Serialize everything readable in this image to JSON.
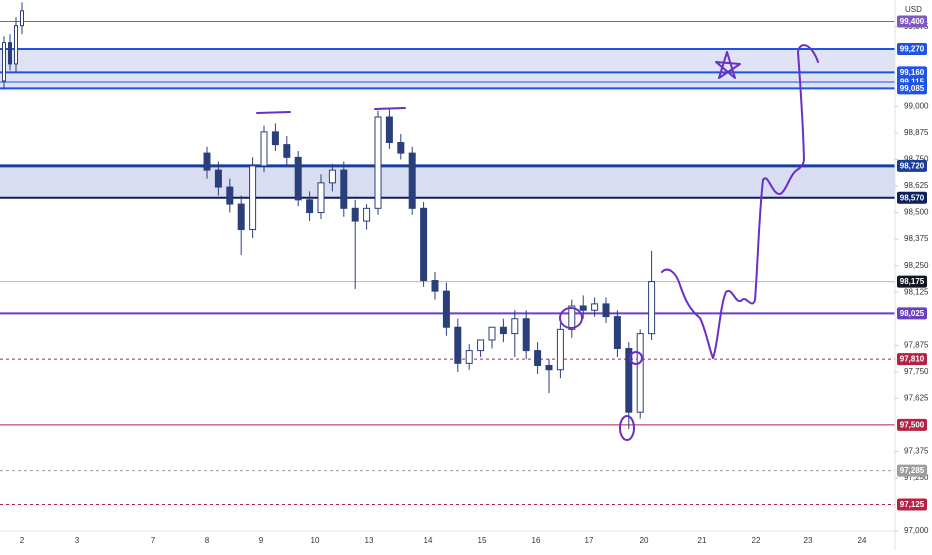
{
  "chart_data": {
    "type": "candlestick",
    "currency": "USD",
    "ylim": [
      96911,
      99501
    ],
    "yticks": [
      {
        "value": 97000,
        "label": "97,000"
      },
      {
        "value": 97250,
        "label": "97,250"
      },
      {
        "value": 97375,
        "label": "97,375"
      },
      {
        "value": 97625,
        "label": "97,625"
      },
      {
        "value": 97750,
        "label": "97,750"
      },
      {
        "value": 97875,
        "label": "97,875"
      },
      {
        "value": 98125,
        "label": "98,125"
      },
      {
        "value": 98250,
        "label": "98,250"
      },
      {
        "value": 98375,
        "label": "98,375"
      },
      {
        "value": 98500,
        "label": "98,500"
      },
      {
        "value": 98625,
        "label": "98,625"
      },
      {
        "value": 98750,
        "label": "98,750"
      },
      {
        "value": 98875,
        "label": "98,875"
      },
      {
        "value": 99000,
        "label": "99,000"
      },
      {
        "value": 99375,
        "label": "99,375"
      }
    ],
    "categories": [
      "2",
      "3",
      "7",
      "8",
      "9",
      "10",
      "13",
      "14",
      "15",
      "16",
      "17",
      "20",
      "21",
      "22",
      "23",
      "24"
    ],
    "candle_color": "#2b3f7a",
    "open": [
      99120,
      99300,
      99200,
      99380,
      98780,
      98700,
      98620,
      98540,
      98420,
      98720,
      98880,
      98820,
      98760,
      98560,
      98500,
      98640,
      98700,
      98520,
      98460,
      98520,
      98950,
      98830,
      98780,
      98520,
      98180,
      98130,
      97960,
      97790,
      97850,
      97900,
      97960,
      97930,
      98000,
      97850,
      97780,
      97760,
      97950,
      98060,
      98040,
      98070,
      98010,
      97860,
      97560,
      97930
    ],
    "high": [
      99330,
      99340,
      99420,
      99490,
      98810,
      98740,
      98660,
      98580,
      98760,
      98910,
      98920,
      98860,
      98790,
      98600,
      98680,
      98730,
      98740,
      98560,
      98540,
      98980,
      98990,
      98870,
      98810,
      98550,
      98220,
      98170,
      98000,
      97880,
      97900,
      97950,
      98000,
      98040,
      98040,
      97890,
      97810,
      97980,
      98090,
      98110,
      98100,
      98100,
      98040,
      97890,
      97950,
      98320
    ],
    "low": [
      99080,
      99170,
      99160,
      99340,
      98660,
      98580,
      98500,
      98300,
      98380,
      98690,
      98790,
      98720,
      98530,
      98460,
      98470,
      98600,
      98480,
      98140,
      98420,
      98490,
      98800,
      98750,
      98490,
      98150,
      98090,
      97920,
      97750,
      97760,
      97820,
      97860,
      97890,
      97820,
      97810,
      97740,
      97650,
      97720,
      97910,
      98000,
      98010,
      97980,
      97820,
      97480,
      97530,
      97900
    ],
    "close": [
      99300,
      99200,
      99380,
      99450,
      98700,
      98620,
      98540,
      98420,
      98720,
      98880,
      98820,
      98760,
      98560,
      98500,
      98640,
      98700,
      98520,
      98460,
      98520,
      98950,
      98830,
      98780,
      98520,
      98180,
      98130,
      97960,
      97790,
      97850,
      97900,
      97960,
      97930,
      98000,
      97850,
      97780,
      97760,
      97950,
      98060,
      98040,
      98070,
      98010,
      97860,
      97560,
      97930,
      98175
    ],
    "zones": [
      {
        "from": 99085,
        "to": 99270,
        "color": "#dfe3f3"
      },
      {
        "from": 98570,
        "to": 98720,
        "color": "#d9ddf2"
      }
    ],
    "levels": [
      {
        "value": 99400,
        "label": "99,400",
        "color": "#7e57c2",
        "width": 1,
        "dash": false
      },
      {
        "value": 99270,
        "label": "99,270",
        "color": "#1e53e5",
        "width": 2,
        "dash": false
      },
      {
        "value": 99160,
        "label": "99,160",
        "color": "#1e53e5",
        "width": 2,
        "dash": false
      },
      {
        "value": 99115,
        "label": "99,115",
        "color": "#1e53e5",
        "width": 1,
        "dash": false
      },
      {
        "value": 99085,
        "label": "99,085",
        "color": "#1e53e5",
        "width": 2,
        "dash": false
      },
      {
        "value": 98720,
        "label": "98,720",
        "color": "#1a3c9a",
        "width": 3,
        "dash": false
      },
      {
        "value": 98570,
        "label": "98,570",
        "color": "#0d1f5c",
        "width": 2,
        "dash": false
      },
      {
        "value": 98175,
        "label": "98,175",
        "color": "#b8b8b8",
        "width": 1,
        "dash": false,
        "label_color": "#131722"
      },
      {
        "value": 98025,
        "label": "98,025",
        "color": "#6a3fc2",
        "width": 2,
        "dash": false
      },
      {
        "value": 97810,
        "label": "97,810",
        "color": "#b22245",
        "width": 1,
        "dash": true
      },
      {
        "value": 97500,
        "label": "97,500",
        "color": "#b22245",
        "width": 1,
        "dash": false
      },
      {
        "value": 97285,
        "label": "97,285",
        "color": "#9e9e9e",
        "width": 1,
        "dash": true
      },
      {
        "value": 97125,
        "label": "97,125",
        "color": "#b22245",
        "width": 1,
        "dash": true
      }
    ]
  }
}
